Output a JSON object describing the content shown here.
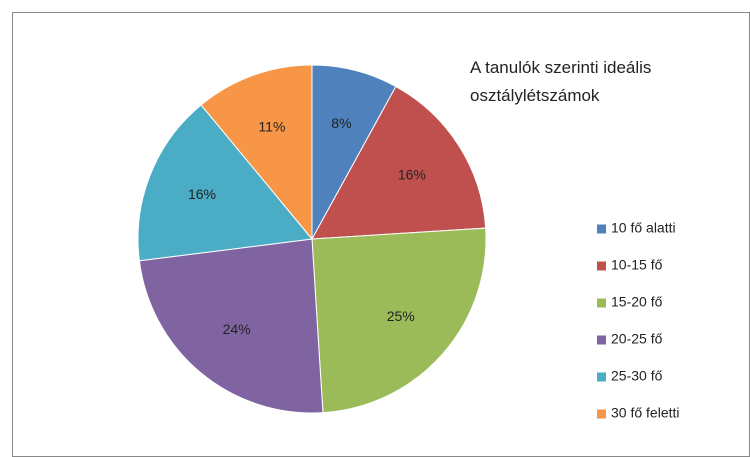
{
  "chart_data": {
    "type": "pie",
    "title": "A tanulók szerinti ideális osztálylétszámok",
    "categories": [
      "10 fő alatti",
      "10-15 fő",
      "15-20 fő",
      "20-25 fő",
      "25-30 fő",
      "30 fő feletti"
    ],
    "values": [
      8,
      16,
      25,
      24,
      16,
      11
    ],
    "value_labels": [
      "8%",
      "16%",
      "25%",
      "24%",
      "16%",
      "11%"
    ],
    "colors": [
      "#4f81bd",
      "#c0504d",
      "#9bbb59",
      "#8064a2",
      "#4bacc6",
      "#f79646"
    ],
    "legend": "right"
  }
}
